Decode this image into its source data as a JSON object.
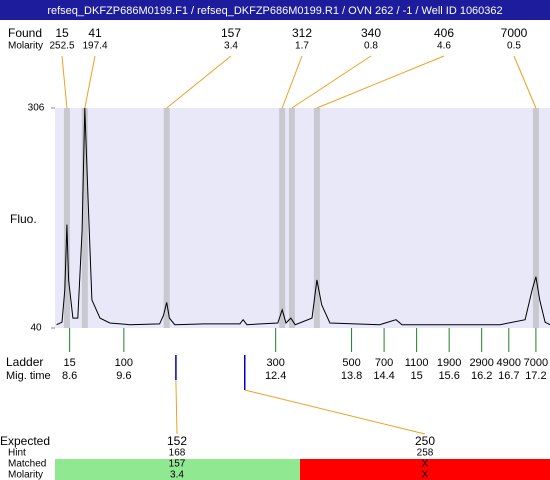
{
  "header": {
    "title": "refseq_DKFZP686M0199.F1 / refseq_DKFZP686M0199.R1 / OVN 262 / -1 / Well ID 1060362"
  },
  "labels": {
    "found": "Found",
    "found_molarity": "Molarity",
    "fluo": "Fluo.",
    "ladder": "Ladder",
    "mig_time": "Mig. time",
    "expected": "Expected",
    "hint": "Hint",
    "matched": "Matched",
    "expected_molarity": "Molarity"
  },
  "chart_data": {
    "type": "line",
    "color": "#000000",
    "x": [
      8.36,
      8.46,
      8.51,
      8.55,
      8.58,
      8.66,
      8.75,
      8.83,
      8.88,
      8.94,
      9.01,
      9.16,
      9.34,
      9.71,
      10.26,
      10.33,
      10.39,
      10.44,
      10.54,
      11.09,
      11.74,
      11.8,
      11.87,
      12.44,
      12.52,
      12.59,
      12.68,
      12.76,
      13.07,
      13.16,
      13.25,
      13.4,
      14.32,
      14.62,
      14.73,
      16.54,
      17.0,
      17.13,
      17.2,
      17.27,
      17.37,
      17.46
    ],
    "values": [
      44,
      47,
      86,
      165,
      98,
      52,
      52,
      158,
      306,
      195,
      74,
      52,
      46,
      44,
      45,
      55,
      71,
      52,
      44,
      45,
      45,
      50,
      44,
      46,
      62,
      46,
      52,
      44,
      52,
      98,
      68,
      46,
      44,
      50,
      44,
      44,
      50,
      86,
      102,
      74,
      47,
      44
    ],
    "xlim": [
      8.33,
      17.46
    ],
    "ylim": [
      40,
      306
    ],
    "yticks": [
      40,
      306
    ]
  },
  "found": {
    "sizes": [
      15,
      41,
      157,
      312,
      340,
      406,
      7000
    ],
    "molarity": [
      252.5,
      197.4,
      3.4,
      1.7,
      0.8,
      4.6,
      0.5
    ],
    "times": [
      8.55,
      8.88,
      10.39,
      12.52,
      12.7,
      13.16,
      17.2
    ]
  },
  "ladder": {
    "sizes": [
      15,
      100,
      300,
      500,
      700,
      1100,
      1900,
      2900,
      4900,
      7000
    ],
    "times": [
      8.6,
      9.6,
      12.4,
      13.8,
      14.4,
      15,
      15.6,
      16.2,
      16.7,
      17.2
    ]
  },
  "expected": {
    "sizes": [
      152,
      250
    ],
    "hint": [
      168,
      258
    ],
    "matched": [
      157,
      "X"
    ],
    "molarity": [
      3.4,
      "X"
    ],
    "times": [
      10.56,
      11.83
    ],
    "colors": [
      "#90e890",
      "#ff0000"
    ]
  }
}
